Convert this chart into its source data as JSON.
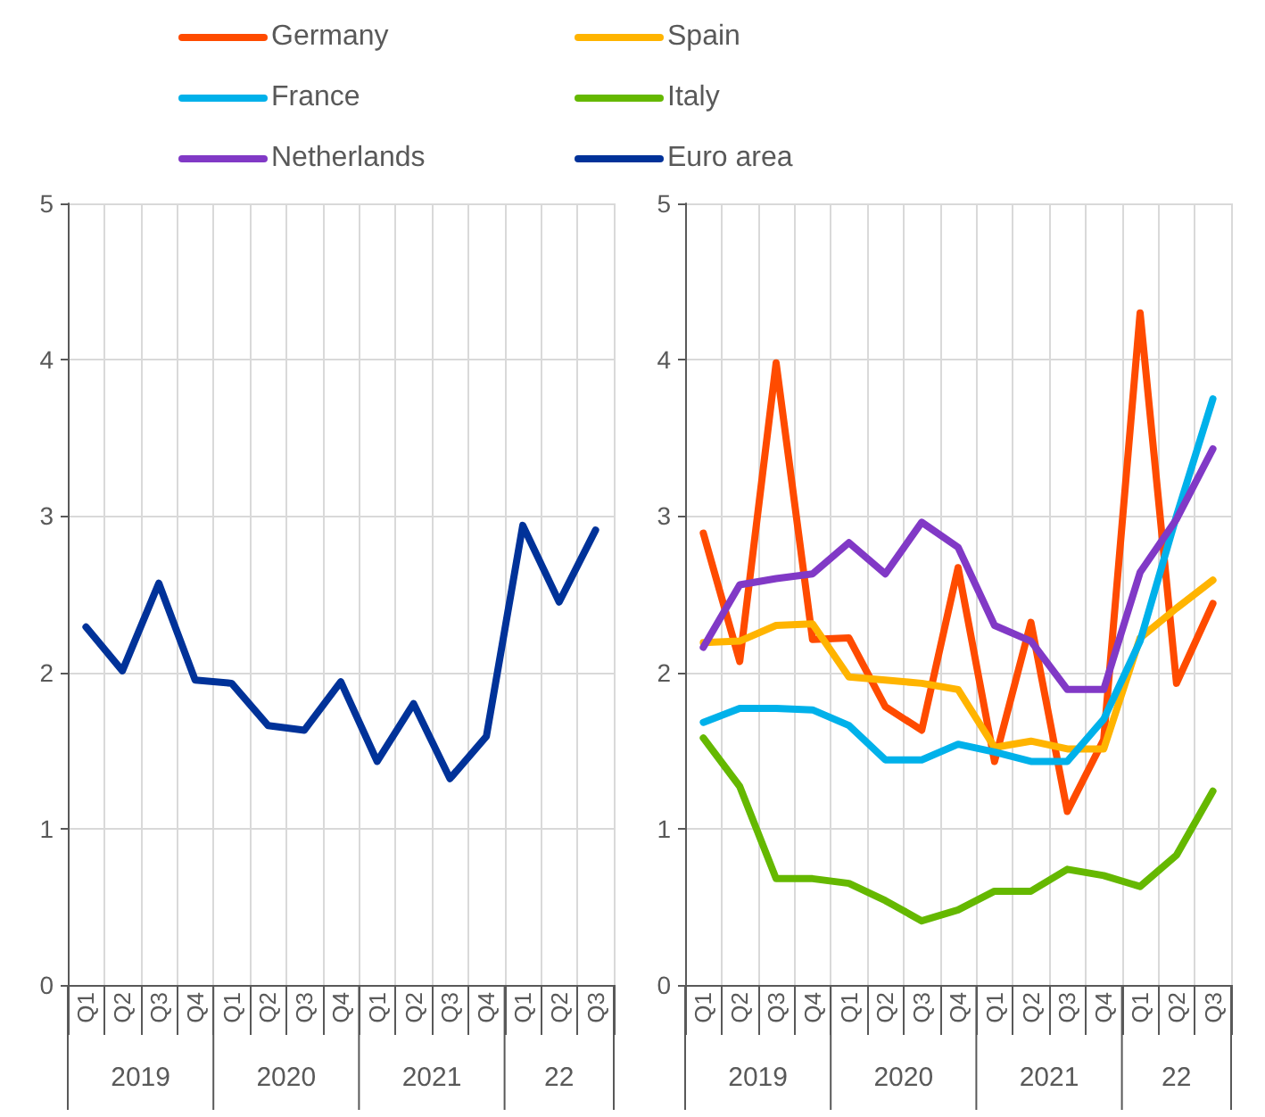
{
  "chart_data": [
    {
      "type": "line",
      "categories": [
        "Q1",
        "Q2",
        "Q3",
        "Q4",
        "Q1",
        "Q2",
        "Q3",
        "Q4",
        "Q1",
        "Q2",
        "Q3",
        "Q4",
        "Q1",
        "Q2",
        "Q3"
      ],
      "annotations": [
        "2019",
        "2020",
        "2021",
        "22"
      ],
      "ylim": [
        0,
        5
      ],
      "yticks": [
        0,
        1,
        2,
        3,
        4,
        5
      ],
      "grid": true,
      "legend": "top",
      "marker": "none",
      "line_style": "solid",
      "series": [
        {
          "name": "Euro area",
          "color": "#003299",
          "values": [
            2.29,
            2.01,
            2.57,
            1.95,
            1.93,
            1.66,
            1.63,
            1.94,
            1.43,
            1.8,
            1.32,
            1.59,
            2.94,
            2.45,
            2.91
          ]
        }
      ]
    },
    {
      "type": "line",
      "categories": [
        "Q1",
        "Q2",
        "Q3",
        "Q4",
        "Q1",
        "Q2",
        "Q3",
        "Q4",
        "Q1",
        "Q2",
        "Q3",
        "Q4",
        "Q1",
        "Q2",
        "Q3"
      ],
      "annotations": [
        "2019",
        "2020",
        "2021",
        "22"
      ],
      "ylim": [
        0,
        5
      ],
      "yticks": [
        0,
        1,
        2,
        3,
        4,
        5
      ],
      "grid": true,
      "legend": "top",
      "marker": "none",
      "line_style": "solid",
      "series": [
        {
          "name": "Germany",
          "color": "#ff4b00",
          "values": [
            2.89,
            2.07,
            3.98,
            2.21,
            2.22,
            1.78,
            1.63,
            2.67,
            1.43,
            2.32,
            1.11,
            1.57,
            4.3,
            1.93,
            2.44
          ]
        },
        {
          "name": "Spain",
          "color": "#ffb400",
          "values": [
            2.19,
            2.2,
            2.3,
            2.31,
            1.97,
            1.95,
            1.93,
            1.89,
            1.52,
            1.56,
            1.51,
            1.51,
            2.22,
            2.41,
            2.59
          ]
        },
        {
          "name": "France",
          "color": "#00b1ea",
          "values": [
            1.68,
            1.77,
            1.77,
            1.76,
            1.66,
            1.44,
            1.44,
            1.54,
            1.49,
            1.43,
            1.43,
            1.7,
            2.2,
            3.0,
            3.75
          ]
        },
        {
          "name": "Italy",
          "color": "#65b800",
          "values": [
            1.58,
            1.27,
            0.68,
            0.68,
            0.65,
            0.54,
            0.41,
            0.48,
            0.6,
            0.6,
            0.74,
            0.7,
            0.63,
            0.83,
            1.24
          ]
        },
        {
          "name": "Netherlands",
          "color": "#8139c6",
          "values": [
            2.16,
            2.56,
            2.6,
            2.63,
            2.83,
            2.63,
            2.96,
            2.8,
            2.3,
            2.2,
            1.89,
            1.89,
            2.64,
            2.98,
            3.43
          ]
        }
      ]
    }
  ]
}
